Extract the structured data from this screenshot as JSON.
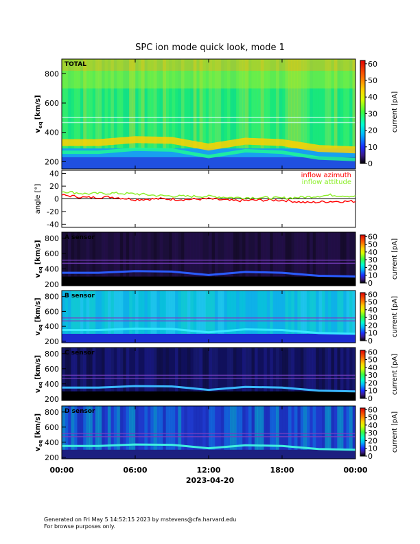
{
  "title": "SPC ion mode quick look, mode 1",
  "footer": {
    "line1": "Generated on Fri May  5 14:52:15 2023 by mstevens@cfa.harvard.edu",
    "line2": "For browse purposes only."
  },
  "colors": {
    "azimuth": "#ff0000",
    "attitude": "#88ee22",
    "axis": "#000000"
  },
  "chart_data": [
    {
      "type": "heatmap",
      "panel": "total",
      "label": "TOTAL",
      "ylabel_main": "v",
      "ylabel_sub": "eq",
      "ylabel_unit": "[km/s]",
      "ylim": [
        150,
        900
      ],
      "yticks": [
        200,
        400,
        600,
        800
      ],
      "colorbar": {
        "label": "current [pA]",
        "range": [
          0,
          62
        ],
        "ticks": [
          0,
          10,
          20,
          30,
          40,
          50,
          60
        ]
      },
      "peak_speed_kms": {
        "x_hours": [
          0,
          3,
          6,
          9,
          12,
          15,
          18,
          21,
          24
        ],
        "values": [
          330,
          330,
          350,
          345,
          300,
          340,
          330,
          290,
          280
        ]
      }
    },
    {
      "type": "line",
      "panel": "angle",
      "ylabel": "angle [°]",
      "ylim": [
        -45,
        45
      ],
      "yticks": [
        -40,
        -20,
        0,
        20,
        40
      ],
      "series": [
        {
          "name": "inflow azimuth",
          "color": "#ff0000",
          "x_hours": [
            0,
            2,
            4,
            6,
            8,
            10,
            12,
            14,
            16,
            18,
            20,
            22,
            24
          ],
          "values": [
            6,
            2,
            3,
            -1,
            0,
            -1,
            0,
            -3,
            -2,
            -2,
            -6,
            -4,
            -4
          ]
        },
        {
          "name": "inflow attitude",
          "color": "#88ee22",
          "x_hours": [
            0,
            2,
            4,
            6,
            8,
            10,
            12,
            14,
            16,
            18,
            20,
            22,
            24
          ],
          "values": [
            12,
            8,
            9,
            8,
            5,
            4,
            4,
            2,
            2,
            1,
            3,
            6,
            4
          ]
        }
      ]
    },
    {
      "type": "heatmap",
      "panel": "A",
      "label": "A sensor",
      "ylabel_main": "v",
      "ylabel_sub": "eq",
      "ylabel_unit": "[km/s]",
      "ylim": [
        180,
        880
      ],
      "yticks": [
        200,
        400,
        600,
        800
      ],
      "colorbar": {
        "label": "current [pA]",
        "range": [
          0,
          62
        ],
        "ticks": [
          0,
          10,
          20,
          30,
          40,
          50,
          60
        ]
      }
    },
    {
      "type": "heatmap",
      "panel": "B",
      "label": "B sensor",
      "ylabel_main": "v",
      "ylabel_sub": "eq",
      "ylabel_unit": "[km/s]",
      "ylim": [
        180,
        880
      ],
      "yticks": [
        200,
        400,
        600,
        800
      ],
      "colorbar": {
        "label": "current [pA]",
        "range": [
          0,
          62
        ],
        "ticks": [
          0,
          10,
          20,
          30,
          40,
          50,
          60
        ]
      }
    },
    {
      "type": "heatmap",
      "panel": "C",
      "label": "C sensor",
      "ylabel_main": "v",
      "ylabel_sub": "eq",
      "ylabel_unit": "[km/s]",
      "ylim": [
        180,
        880
      ],
      "yticks": [
        200,
        400,
        600,
        800
      ],
      "colorbar": {
        "label": "current [pA]",
        "range": [
          0,
          62
        ],
        "ticks": [
          0,
          10,
          20,
          30,
          40,
          50,
          60
        ]
      }
    },
    {
      "type": "heatmap",
      "panel": "D",
      "label": "D sensor",
      "ylabel_main": "v",
      "ylabel_sub": "eq",
      "ylabel_unit": "[km/s]",
      "ylim": [
        180,
        880
      ],
      "yticks": [
        200,
        400,
        600,
        800
      ],
      "colorbar": {
        "label": "current [pA]",
        "range": [
          0,
          62
        ],
        "ticks": [
          0,
          10,
          20,
          30,
          40,
          50,
          60
        ]
      }
    }
  ],
  "xaxis": {
    "range_hours": [
      0,
      24
    ],
    "tick_hours": [
      0,
      6,
      12,
      18,
      24
    ],
    "tick_labels": [
      "00:00",
      "06:00",
      "12:00",
      "18:00",
      "00:00"
    ],
    "date": "2023-04-20"
  }
}
